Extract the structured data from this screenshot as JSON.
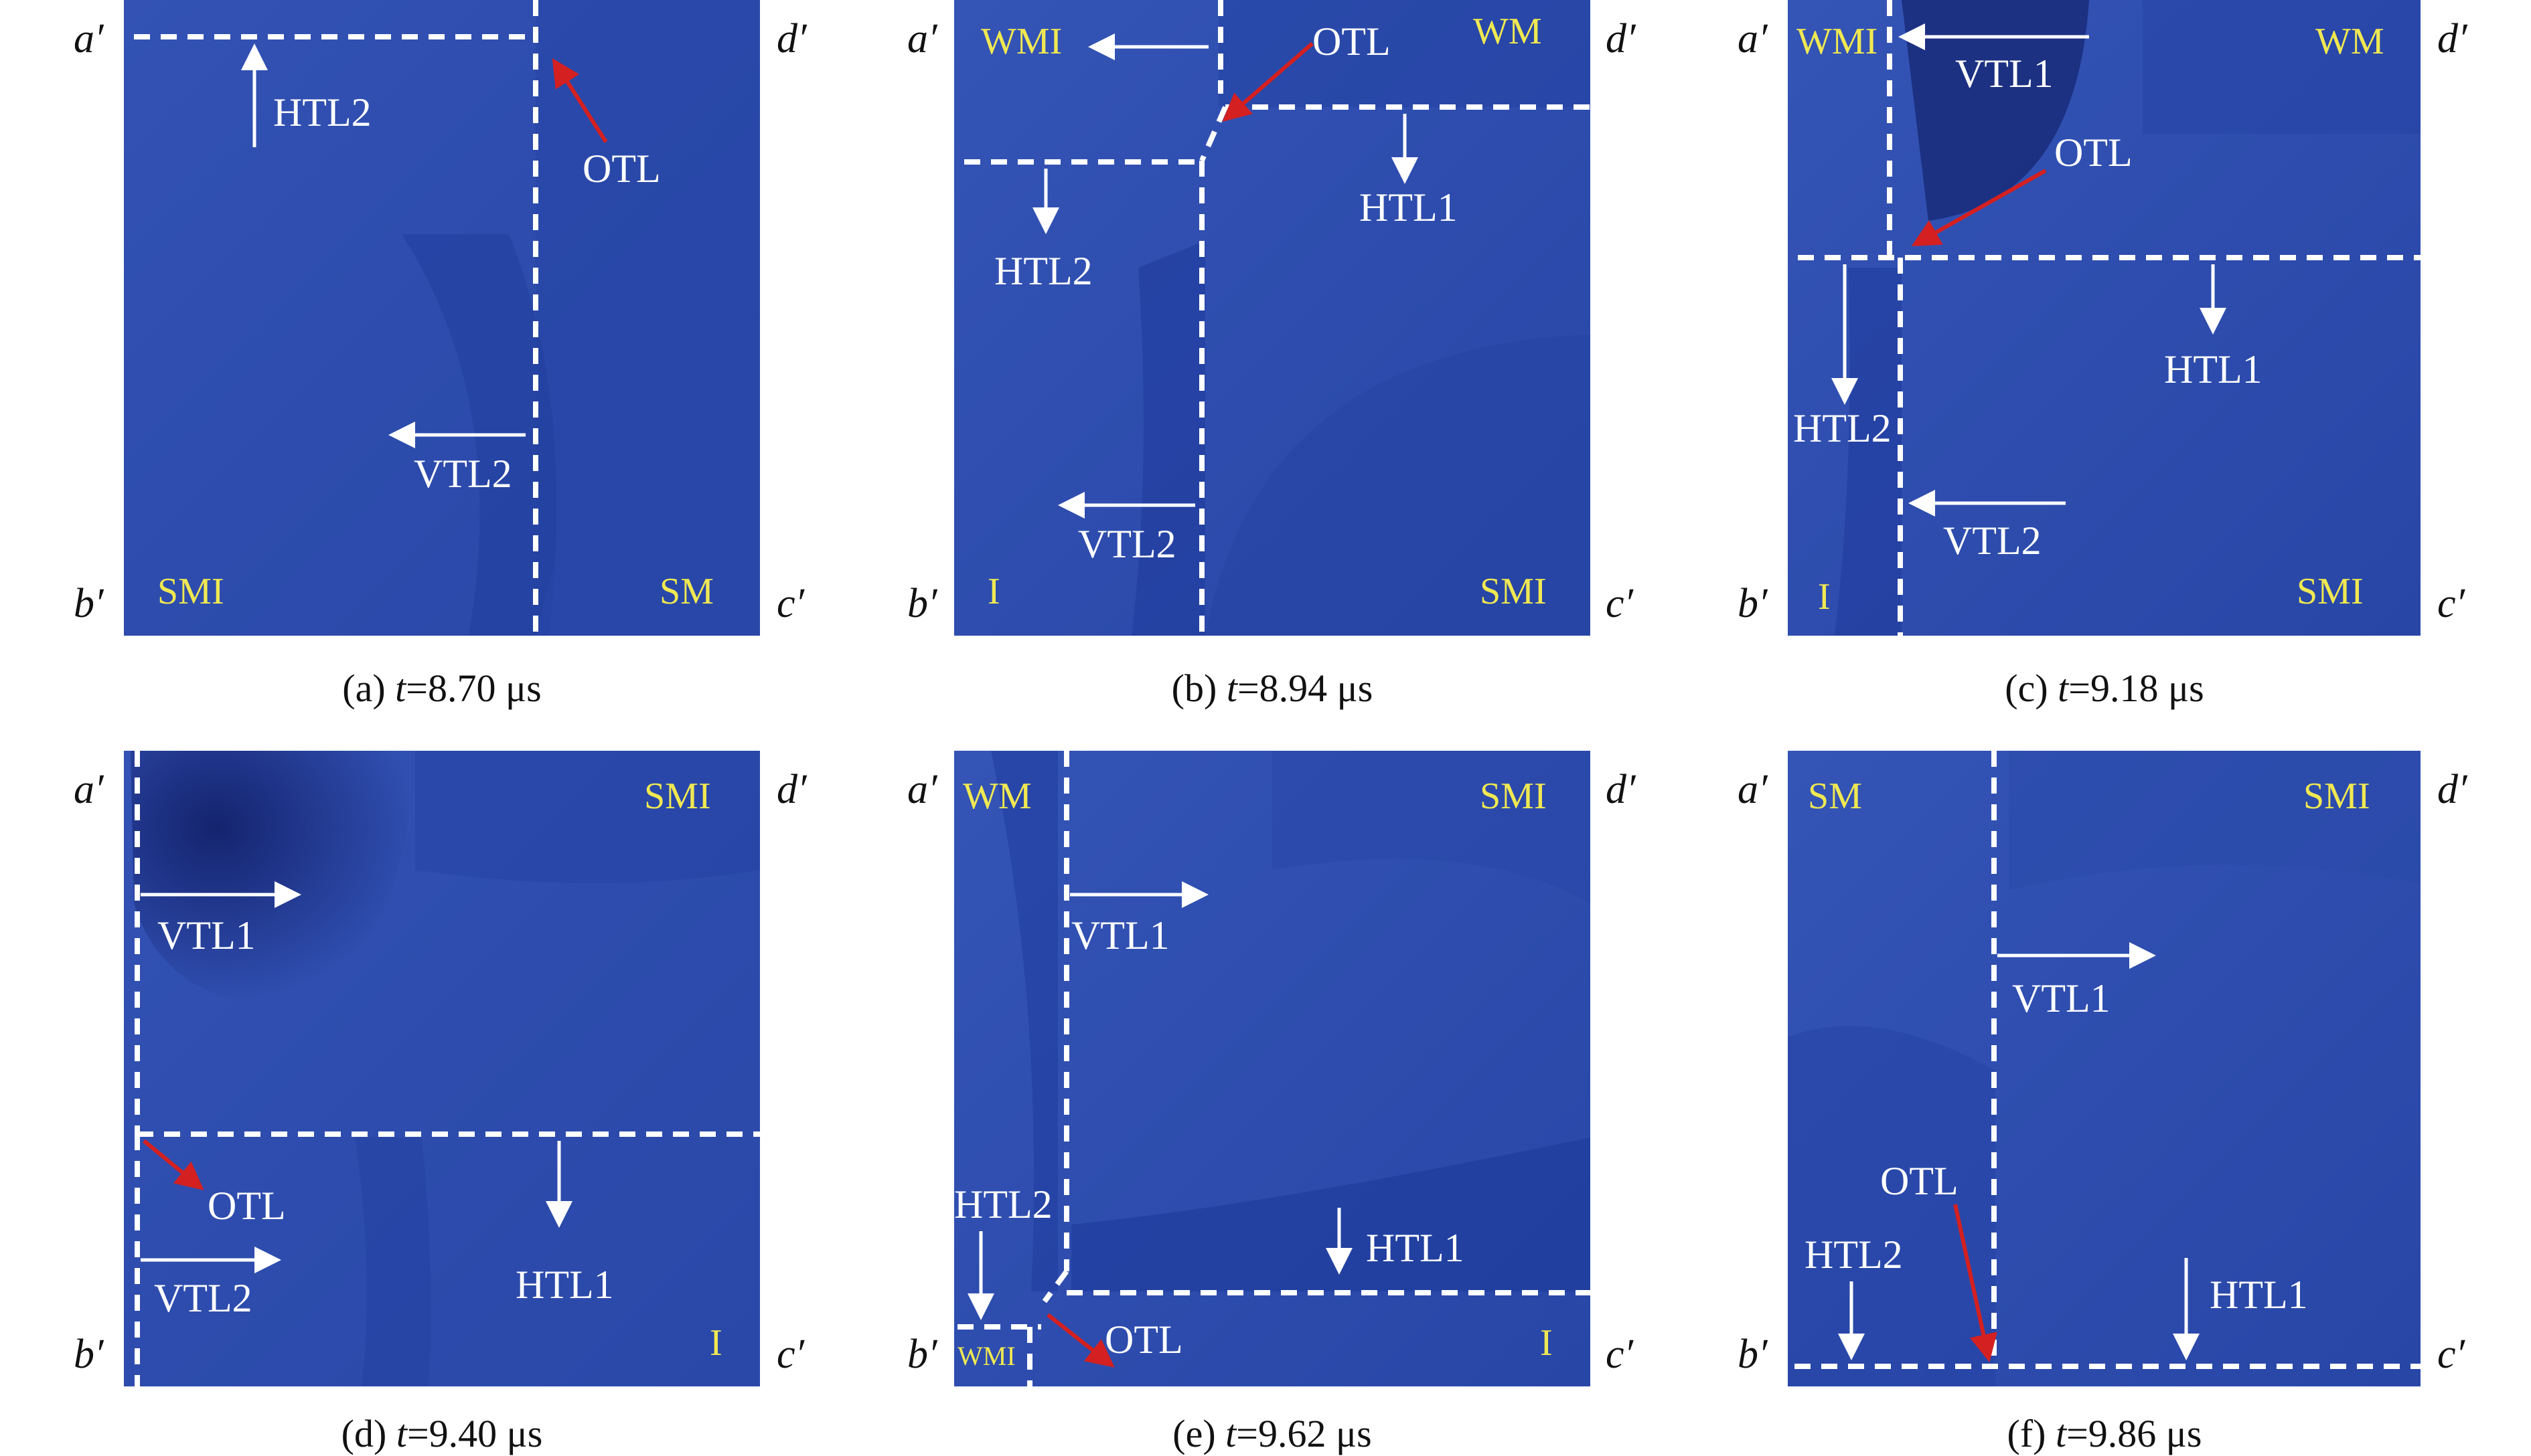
{
  "corners": {
    "a": "a′",
    "b": "b′",
    "c": "c′",
    "d": "d′"
  },
  "colors": {
    "panel_base": "#2f4fb2",
    "panel_dark": "#14236e",
    "boundary": "#ffffff",
    "phase_text": "#f0e852",
    "otl_arrow": "#d42020"
  },
  "panels": [
    {
      "id": "a",
      "caption": {
        "prefix": "(a) ",
        "var": "t",
        "rest": "=8.70 μs"
      },
      "phases": {
        "tl": "",
        "tr": "",
        "bl": "SMI",
        "br": "SM"
      },
      "labels": {
        "htl2": "HTL2",
        "otl": "OTL",
        "vtl2": "VTL2"
      }
    },
    {
      "id": "b",
      "caption": {
        "prefix": "(b) ",
        "var": "t",
        "rest": "=8.94 μs"
      },
      "phases": {
        "tl": "WMI",
        "tr": "WM",
        "bl": "I",
        "br": "SMI"
      },
      "labels": {
        "otl": "OTL",
        "htl1": "HTL1",
        "htl2": "HTL2",
        "vtl2": "VTL2"
      }
    },
    {
      "id": "c",
      "caption": {
        "prefix": "(c) ",
        "var": "t",
        "rest": "=9.18 μs"
      },
      "phases": {
        "tl": "WMI",
        "tr": "WM",
        "bl": "I",
        "br": "SMI"
      },
      "labels": {
        "vtl1": "VTL1",
        "otl": "OTL",
        "htl1": "HTL1",
        "htl2": "HTL2",
        "vtl2": "VTL2"
      }
    },
    {
      "id": "d",
      "caption": {
        "prefix": "(d) ",
        "var": "t",
        "rest": "=9.40 μs"
      },
      "phases": {
        "tl": "",
        "tr": "SMI",
        "bl": "",
        "br": "I"
      },
      "labels": {
        "vtl1": "VTL1",
        "otl": "OTL",
        "htl1": "HTL1",
        "vtl2": "VTL2"
      }
    },
    {
      "id": "e",
      "caption": {
        "prefix": "(e) ",
        "var": "t",
        "rest": "=9.62 μs"
      },
      "phases": {
        "tl": "WM",
        "tr": "SMI",
        "bl": "WMI",
        "br": "I"
      },
      "labels": {
        "vtl1": "VTL1",
        "htl2": "HTL2",
        "htl1": "HTL1",
        "otl": "OTL"
      }
    },
    {
      "id": "f",
      "caption": {
        "prefix": "(f) ",
        "var": "t",
        "rest": "=9.86 μs"
      },
      "phases": {
        "tl": "SM",
        "tr": "SMI",
        "bl": "",
        "br": ""
      },
      "labels": {
        "vtl1": "VTL1",
        "otl": "OTL",
        "htl2": "HTL2",
        "htl1": "HTL1"
      }
    }
  ]
}
